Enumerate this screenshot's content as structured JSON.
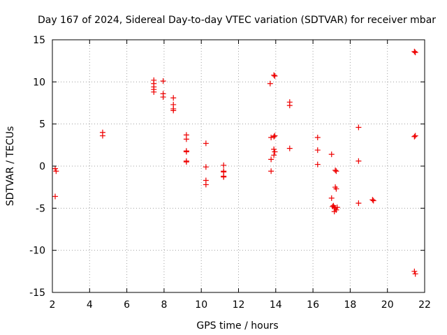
{
  "chart_data": {
    "type": "scatter",
    "title": "Day 167 of 2024, Sidereal Day-to-day VTEC variation (SDTVAR) for receiver mbar",
    "xlabel": "GPS time / hours",
    "ylabel": "SDTVAR / TECUs",
    "xlim": [
      2,
      22
    ],
    "ylim": [
      -15,
      15
    ],
    "xticks": [
      2,
      4,
      6,
      8,
      10,
      12,
      14,
      16,
      18,
      20,
      22
    ],
    "yticks": [
      -15,
      -10,
      -5,
      0,
      5,
      10,
      15
    ],
    "xtick_labels": [
      "2",
      "4",
      "6",
      "8",
      "10",
      "12",
      "14",
      "16",
      "18",
      "20",
      "22"
    ],
    "ytick_labels": [
      "-15",
      "-10",
      "-5",
      "0",
      "5",
      "10",
      "15"
    ],
    "grid": true,
    "marker": "plus",
    "series": [
      {
        "name": "SDTVAR",
        "color": "#ee0000",
        "points": [
          [
            2.15,
            -0.3
          ],
          [
            2.2,
            -0.6
          ],
          [
            2.15,
            -3.6
          ],
          [
            4.7,
            4.0
          ],
          [
            4.7,
            3.6
          ],
          [
            7.45,
            10.2
          ],
          [
            7.45,
            9.8
          ],
          [
            7.45,
            9.4
          ],
          [
            7.45,
            9.1
          ],
          [
            7.45,
            8.8
          ],
          [
            7.95,
            10.1
          ],
          [
            7.95,
            8.6
          ],
          [
            7.95,
            8.2
          ],
          [
            8.5,
            8.1
          ],
          [
            8.5,
            7.3
          ],
          [
            8.5,
            6.8
          ],
          [
            8.5,
            6.6
          ],
          [
            9.2,
            3.7
          ],
          [
            9.2,
            3.2
          ],
          [
            9.2,
            1.8
          ],
          [
            9.2,
            1.7
          ],
          [
            9.2,
            0.6
          ],
          [
            9.2,
            0.5
          ],
          [
            10.25,
            2.7
          ],
          [
            10.25,
            -0.1
          ],
          [
            10.25,
            -1.7
          ],
          [
            10.25,
            -2.2
          ],
          [
            11.2,
            0.1
          ],
          [
            11.2,
            -0.6
          ],
          [
            11.2,
            -0.7
          ],
          [
            11.2,
            -1.2
          ],
          [
            11.2,
            -1.3
          ],
          [
            13.7,
            9.8
          ],
          [
            13.75,
            3.4
          ],
          [
            13.75,
            0.8
          ],
          [
            13.75,
            -0.6
          ],
          [
            13.9,
            10.8
          ],
          [
            13.95,
            10.7
          ],
          [
            13.9,
            3.5
          ],
          [
            13.95,
            3.6
          ],
          [
            13.9,
            2.0
          ],
          [
            13.95,
            1.7
          ],
          [
            13.9,
            1.3
          ],
          [
            14.75,
            7.6
          ],
          [
            14.75,
            7.2
          ],
          [
            14.75,
            2.1
          ],
          [
            16.25,
            3.4
          ],
          [
            16.25,
            1.9
          ],
          [
            16.25,
            0.2
          ],
          [
            17.0,
            1.4
          ],
          [
            17.0,
            -3.8
          ],
          [
            17.05,
            -4.8
          ],
          [
            17.2,
            -0.5
          ],
          [
            17.25,
            -0.6
          ],
          [
            17.2,
            -2.5
          ],
          [
            17.25,
            -2.7
          ],
          [
            17.1,
            -4.7
          ],
          [
            17.15,
            -4.9
          ],
          [
            17.2,
            -5.0
          ],
          [
            17.25,
            -5.2
          ],
          [
            17.15,
            -5.4
          ],
          [
            17.3,
            -4.9
          ],
          [
            18.45,
            4.6
          ],
          [
            18.45,
            0.6
          ],
          [
            18.45,
            -4.4
          ],
          [
            19.2,
            -4.0
          ],
          [
            19.25,
            -4.1
          ],
          [
            21.45,
            13.6
          ],
          [
            21.5,
            13.5
          ],
          [
            21.45,
            3.5
          ],
          [
            21.5,
            3.6
          ],
          [
            21.45,
            -12.5
          ],
          [
            21.5,
            -12.8
          ]
        ]
      }
    ]
  }
}
